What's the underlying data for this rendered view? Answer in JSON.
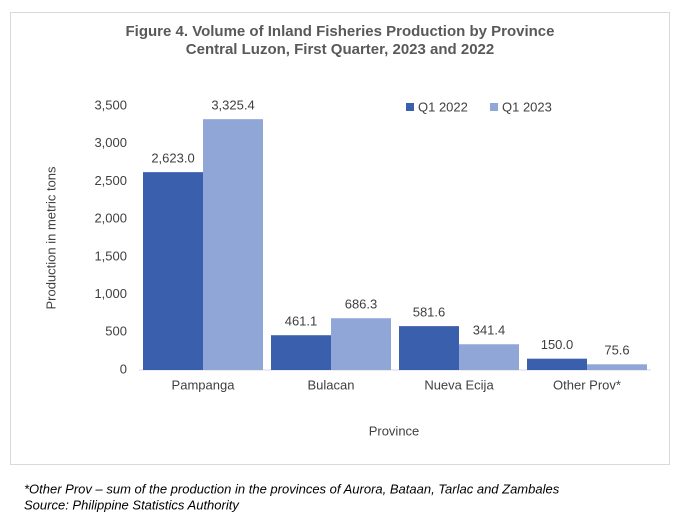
{
  "chart_data": {
    "type": "bar",
    "title": "Figure 4. Volume of Inland Fisheries Production by Province",
    "subtitle": "Central Luzon, First Quarter, 2023 and 2022",
    "x_label": "Province",
    "y_label": "Production in metric tons",
    "categories": [
      "Pampanga",
      "Bulacan",
      "Nueva Ecija",
      "Other Prov*"
    ],
    "series": [
      {
        "name": "Q1 2022",
        "color": "#3a5fad",
        "values": [
          2623.0,
          461.1,
          581.6,
          150.0
        ],
        "value_labels": [
          "2,623.0",
          "461.1",
          "581.6",
          "150.0"
        ]
      },
      {
        "name": "Q1 2023",
        "color": "#8fa6d6",
        "values": [
          3325.4,
          686.3,
          341.4,
          75.6
        ],
        "value_labels": [
          "3,325.4",
          "686.3",
          "341.4",
          "75.6"
        ]
      }
    ],
    "ylim": [
      0,
      3500
    ],
    "yticks": [
      0,
      500,
      {
        "value": 1000,
        "label": "1,000"
      },
      {
        "value": 1500,
        "label": "1,500"
      },
      {
        "value": 2000,
        "label": "2,000"
      },
      {
        "value": 2500,
        "label": "2,500"
      },
      {
        "value": 3000,
        "label": "3,000"
      },
      {
        "value": 3500,
        "label": "3,500"
      }
    ],
    "grid": false,
    "legend": "top"
  },
  "notes": [
    "*Other Prov – sum of the production in the provinces of Aurora, Bataan, Tarlac and Zambales",
    "Source: Philippine Statistics Authority"
  ]
}
